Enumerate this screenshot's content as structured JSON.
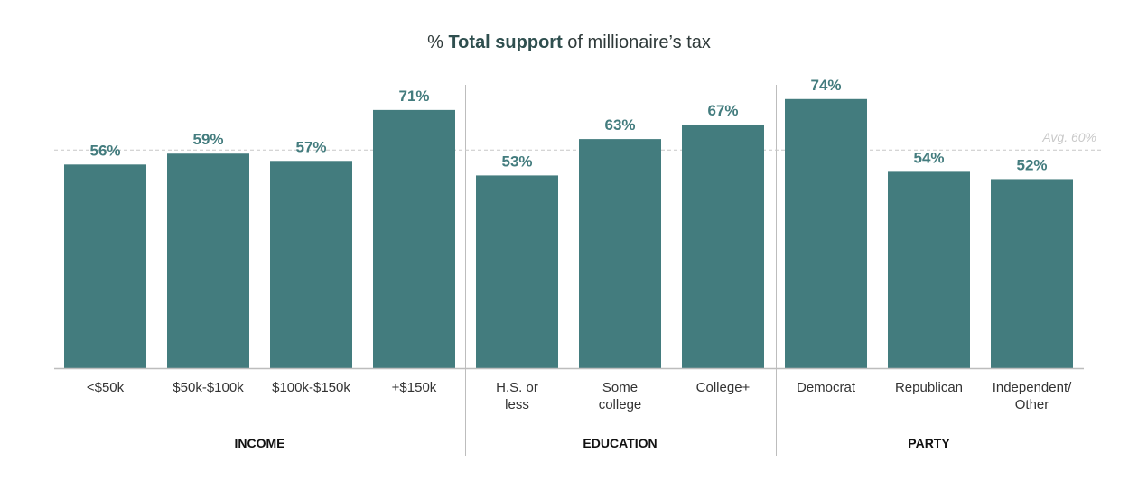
{
  "title": {
    "prefix": "% ",
    "bold": "Total support",
    "suffix": " of millionaire’s tax"
  },
  "colors": {
    "bar": "#437c7e",
    "value_label": "#437c7e",
    "axis": "#bdbdbd",
    "avg_line": "#c7c7c7",
    "avg_label": "#c9c9c9",
    "text": "#333333"
  },
  "chart_data": {
    "type": "bar",
    "title": "% Total support of millionaire’s tax",
    "ylim": [
      0,
      100
    ],
    "groups": [
      {
        "name": "INCOME",
        "categories": [
          [
            "<$50k"
          ],
          [
            "$50k-$100k"
          ],
          [
            "$100k-$150k"
          ],
          [
            "+$150k"
          ]
        ],
        "values": [
          56,
          59,
          57,
          71
        ],
        "labels": [
          "56%",
          "59%",
          "57%",
          "71%"
        ]
      },
      {
        "name": "EDUCATION",
        "categories": [
          [
            "H.S. or",
            "less"
          ],
          [
            "Some",
            "college"
          ],
          [
            "College+"
          ]
        ],
        "values": [
          53,
          63,
          67
        ],
        "labels": [
          "53%",
          "63%",
          "67%"
        ]
      },
      {
        "name": "PARTY",
        "categories": [
          [
            "Democrat"
          ],
          [
            "Republican"
          ],
          [
            "Independent/",
            "Other"
          ]
        ],
        "values": [
          74,
          54,
          52
        ],
        "labels": [
          "74%",
          "54%",
          "52%"
        ]
      }
    ],
    "average": {
      "value": 60,
      "label": "Avg. 60%"
    },
    "grid": false,
    "legend": "none"
  }
}
